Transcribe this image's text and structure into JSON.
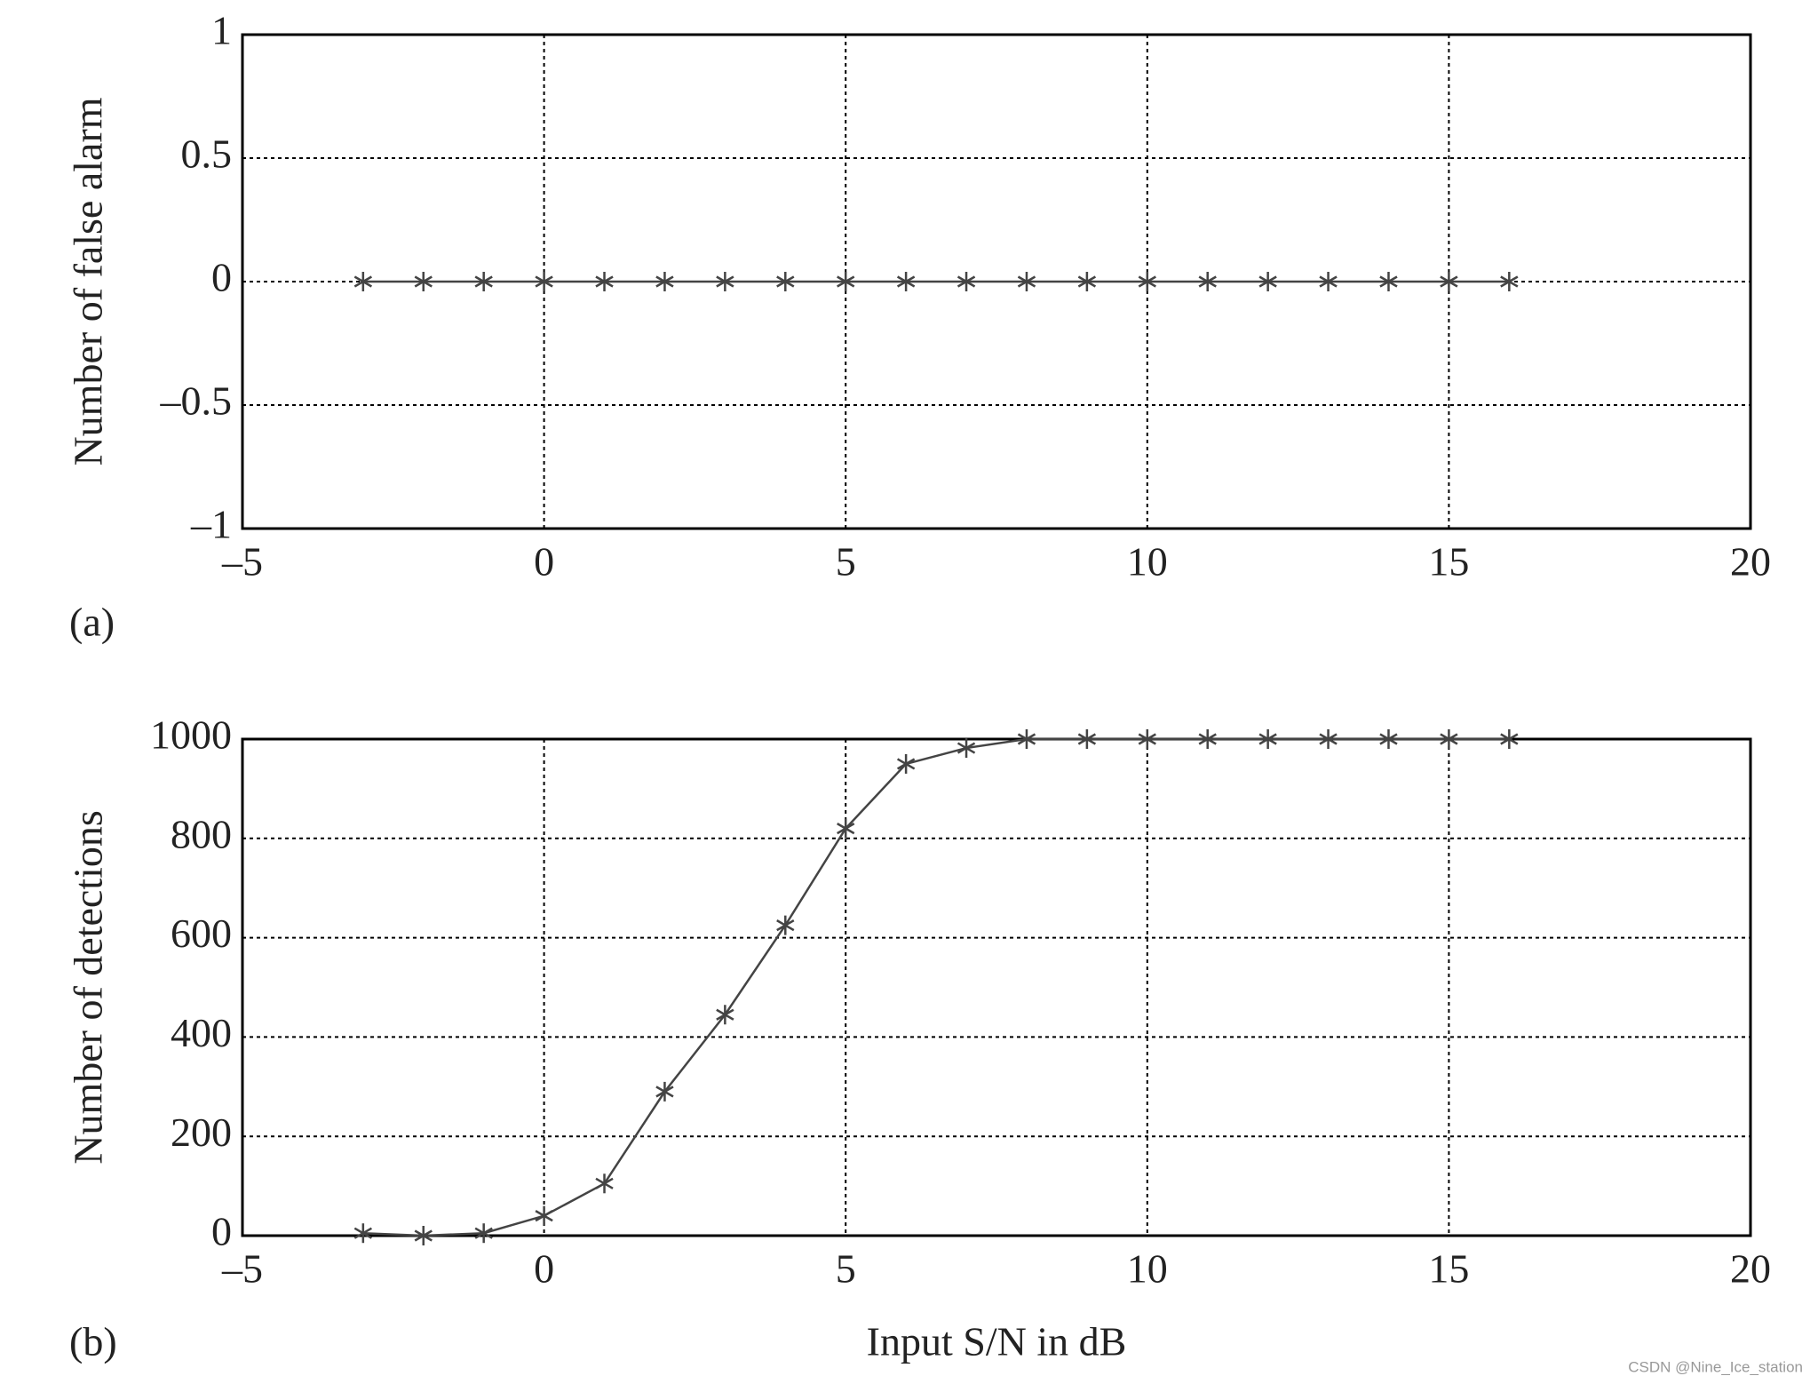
{
  "chart_data": [
    {
      "type": "line",
      "panel_label": "(a)",
      "ylabel": "Number of false alarm",
      "color": "#444444",
      "grid": true,
      "x": [
        -3,
        -2,
        -1,
        0,
        1,
        2,
        3,
        4,
        5,
        6,
        7,
        8,
        9,
        10,
        11,
        12,
        13,
        14,
        15,
        16
      ],
      "values": [
        0,
        0,
        0,
        0,
        0,
        0,
        0,
        0,
        0,
        0,
        0,
        0,
        0,
        0,
        0,
        0,
        0,
        0,
        0,
        0
      ],
      "xlim": [
        -5,
        20
      ],
      "xticks": [
        {
          "value": -5,
          "label": "–5"
        },
        0,
        5,
        10,
        15,
        20
      ],
      "ylim": [
        -1,
        1
      ],
      "yticks": [
        {
          "value": -1,
          "label": "–1"
        },
        {
          "value": -0.5,
          "label": "–0.5"
        },
        0,
        0.5,
        1
      ]
    },
    {
      "type": "line",
      "panel_label": "(b)",
      "ylabel": "Number of detections",
      "xlabel": "Input S/N in dB",
      "color": "#444444",
      "grid": true,
      "x": [
        -3,
        -2,
        -1,
        0,
        1,
        2,
        3,
        4,
        5,
        6,
        7,
        8,
        9,
        10,
        11,
        12,
        13,
        14,
        15,
        16
      ],
      "values": [
        5,
        0,
        5,
        40,
        105,
        290,
        445,
        625,
        820,
        950,
        982,
        1000,
        1000,
        1000,
        1000,
        1000,
        1000,
        1000,
        1000,
        1000
      ],
      "xlim": [
        -5,
        20
      ],
      "xticks": [
        {
          "value": -5,
          "label": "–5"
        },
        0,
        5,
        10,
        15,
        20
      ],
      "ylim": [
        0,
        1000
      ],
      "yticks": [
        0,
        200,
        400,
        600,
        800,
        1000
      ]
    }
  ],
  "watermark": "CSDN @Nine_Ice_station"
}
